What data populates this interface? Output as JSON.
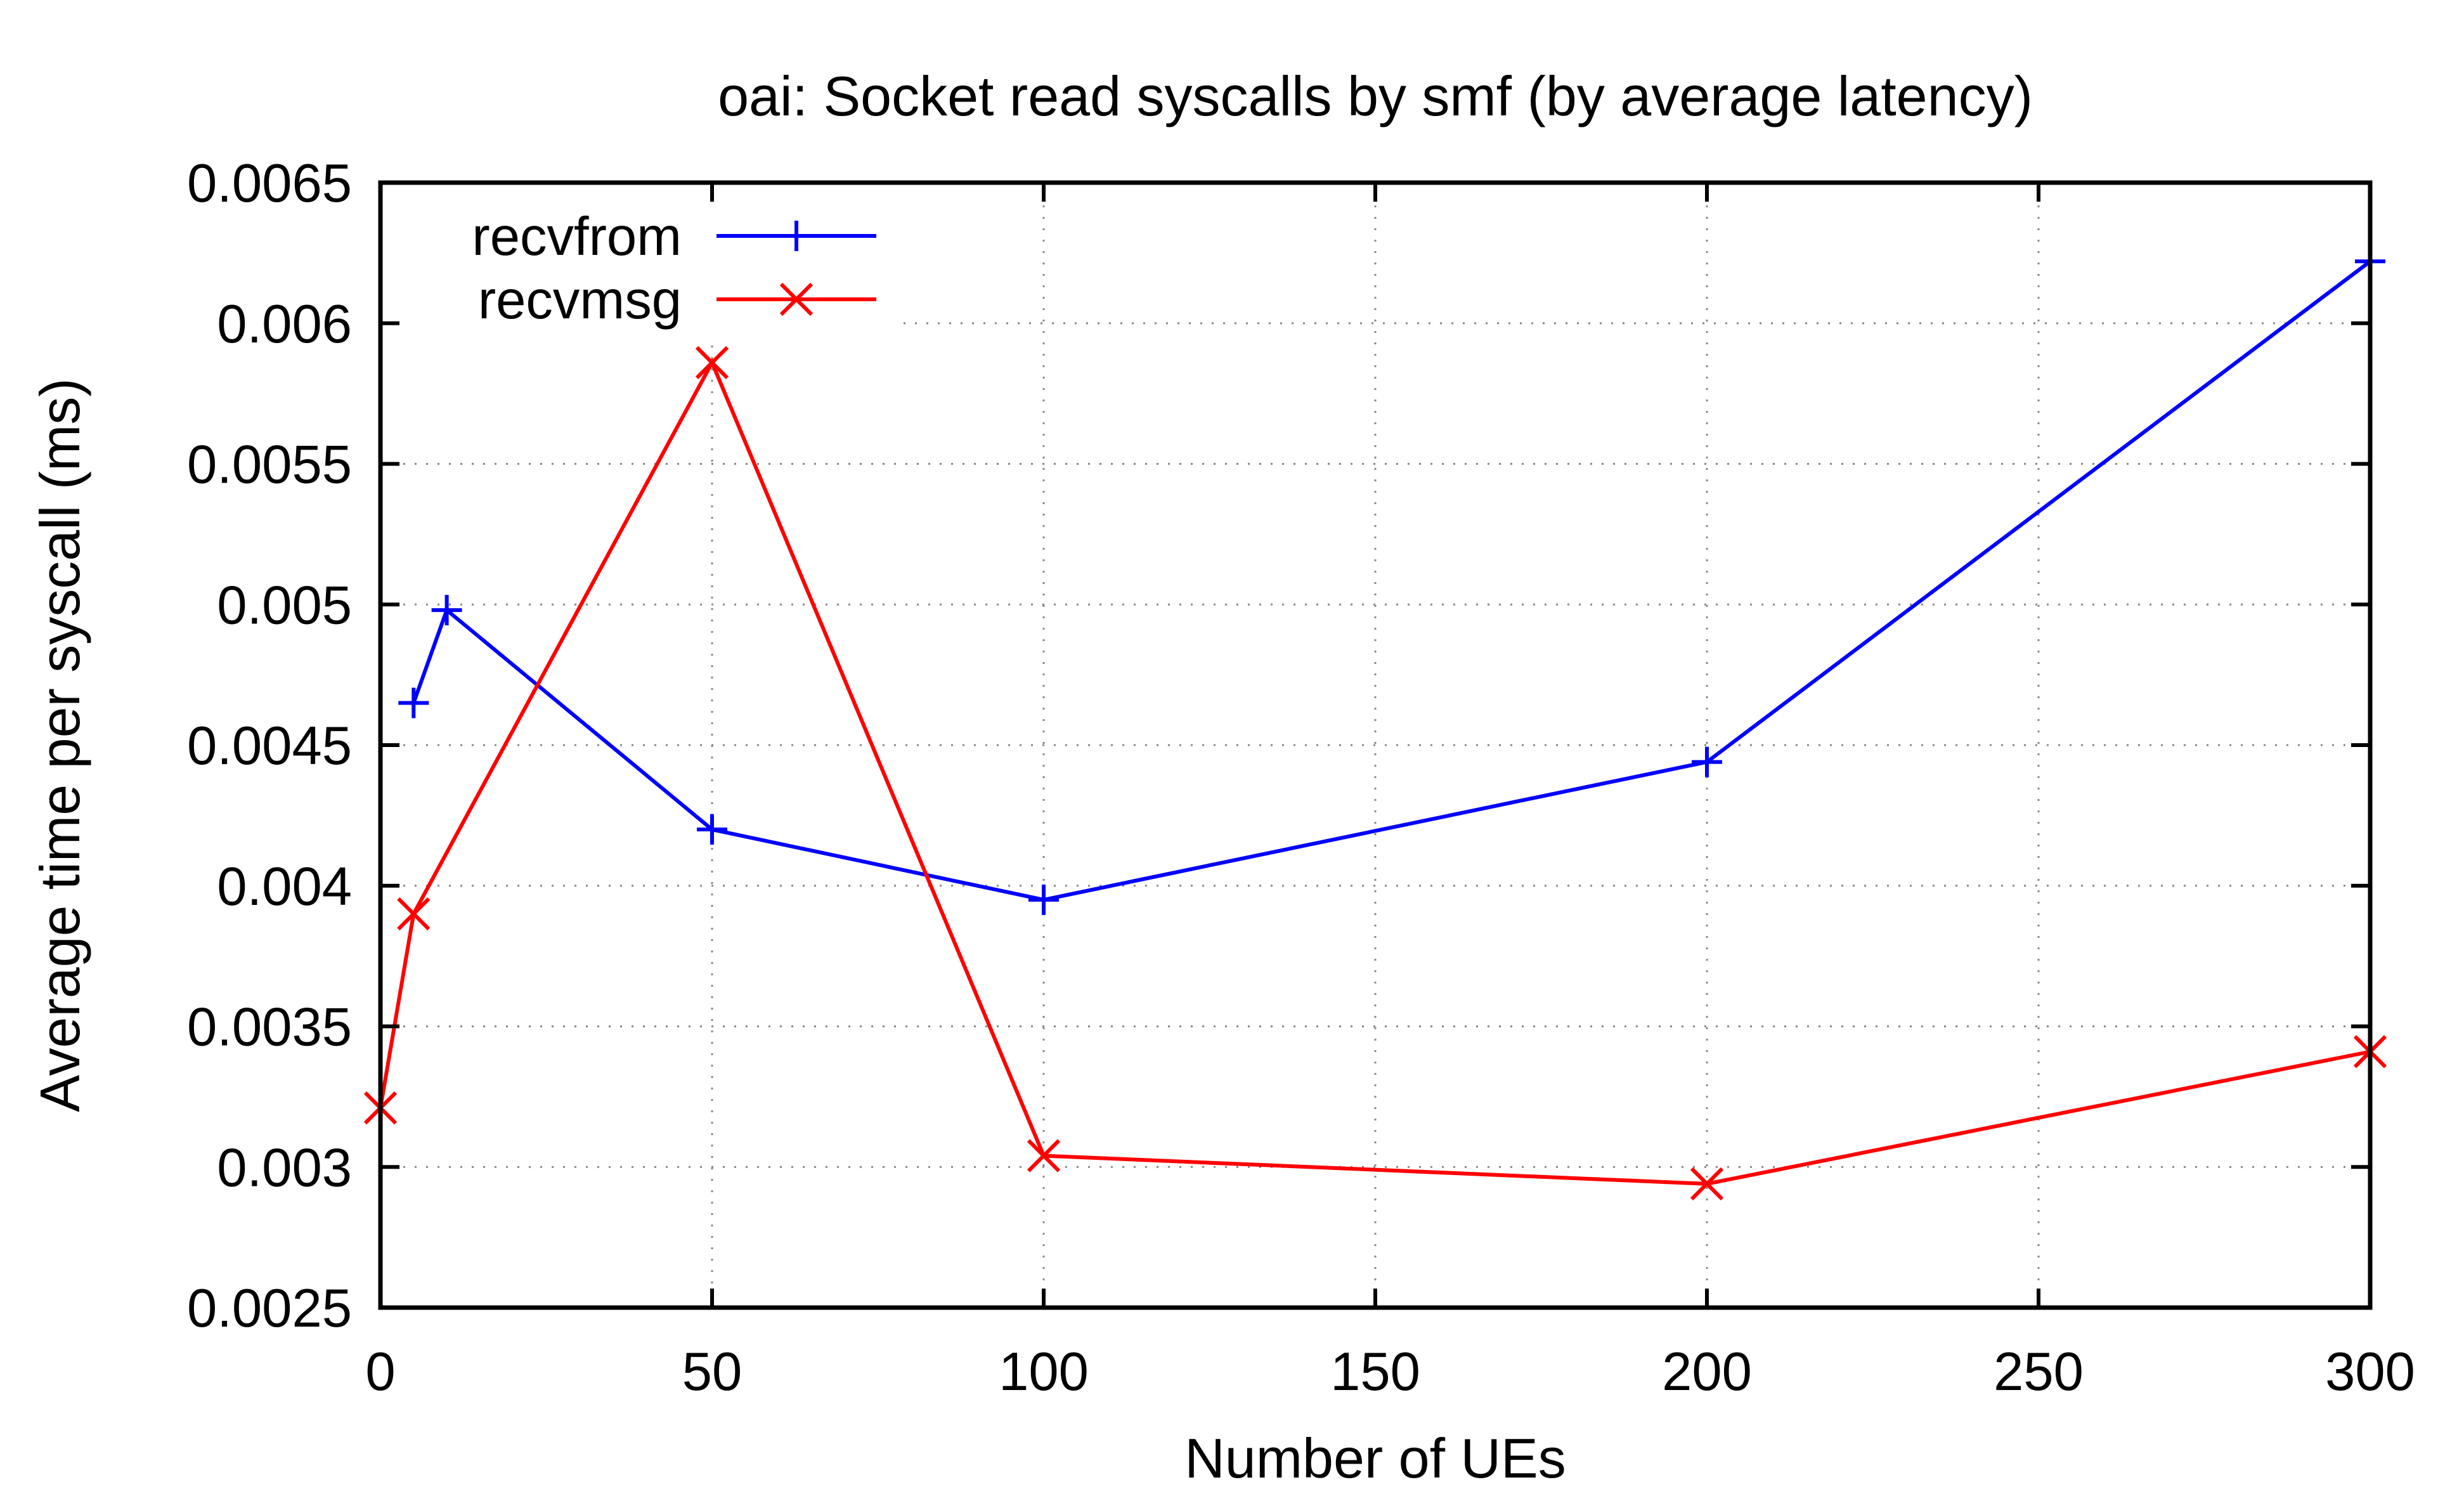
{
  "chart_data": {
    "type": "line",
    "title": "oai: Socket read syscalls by smf (by average latency)",
    "xlabel": "Number of UEs",
    "ylabel": "Average time per syscall (ms)",
    "xlim": [
      0,
      300
    ],
    "ylim": [
      0.0025,
      0.0065
    ],
    "x_ticks": [
      0,
      50,
      100,
      150,
      200,
      250,
      300
    ],
    "x_tick_labels": [
      "0",
      "50",
      "100",
      "150",
      "200",
      "250",
      "300"
    ],
    "y_ticks": [
      0.0025,
      0.003,
      0.0035,
      0.004,
      0.0045,
      0.005,
      0.0055,
      0.006,
      0.0065
    ],
    "y_tick_labels": [
      "0.0025",
      "0.003",
      "0.0035",
      "0.004",
      "0.0045",
      "0.005",
      "0.0055",
      "0.006",
      "0.0065"
    ],
    "grid": true,
    "legend_position": "top-left",
    "series": [
      {
        "name": "recvfrom",
        "color": "#0000ff",
        "marker": "plus",
        "x": [
          5,
          10,
          50,
          100,
          200,
          300
        ],
        "y": [
          0.00465,
          0.00498,
          0.0042,
          0.00395,
          0.00444,
          0.00622
        ]
      },
      {
        "name": "recvmsg",
        "color": "#ff0000",
        "marker": "cross",
        "x": [
          0,
          5,
          50,
          100,
          200,
          300
        ],
        "y": [
          0.00321,
          0.0039,
          0.00586,
          0.00304,
          0.00294,
          0.00341
        ]
      }
    ]
  }
}
